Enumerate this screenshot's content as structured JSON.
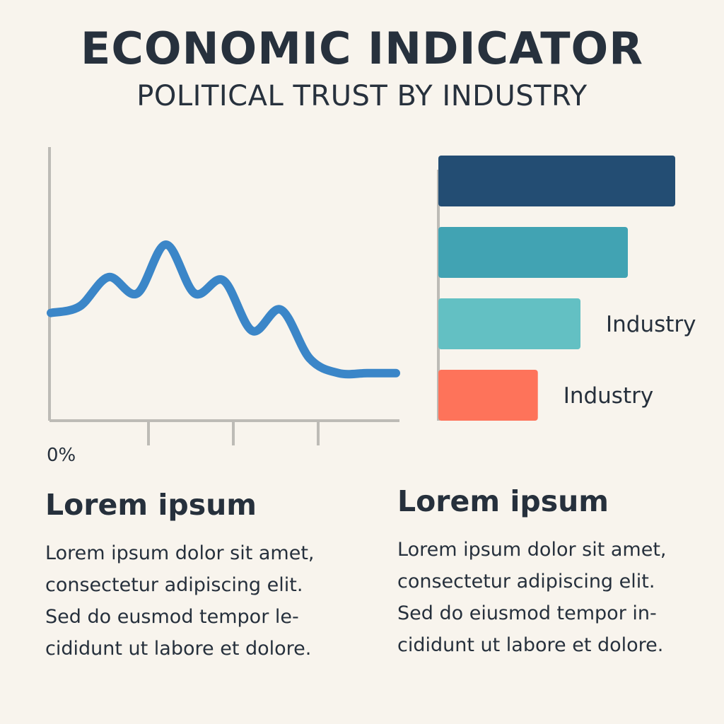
{
  "header": {
    "title": "ECONOMIC INDICATOR",
    "subtitle": "POLITICAL TRUST BY INDUSTRY"
  },
  "chart_data": [
    {
      "type": "line",
      "title": "",
      "y_tick_labels": [
        "0%"
      ],
      "x": [
        0,
        1,
        2,
        3,
        4,
        5,
        6,
        7,
        8,
        9,
        10,
        11,
        12
      ],
      "series": [
        {
          "values": [
            38,
            42,
            60,
            50,
            80,
            50,
            58,
            27,
            40,
            10,
            1,
            1,
            1
          ],
          "color": "#3b86c8"
        }
      ],
      "grid": false
    },
    {
      "type": "bar",
      "orientation": "horizontal",
      "categories": [
        "",
        "",
        "Industry",
        "Industry"
      ],
      "values": [
        100,
        80,
        60,
        42
      ],
      "colors": [
        "#234d73",
        "#41a3b3",
        "#63c0c3",
        "#fe735a"
      ],
      "grid": false
    }
  ],
  "sections": [
    {
      "heading": "Lorem ipsum",
      "lines": [
        "Lorem ipsum dolor sit amet,",
        "consectetur adipiscing elit.",
        "Sed do eusmod tempor le-",
        "cididunt ut labore et dolore."
      ]
    },
    {
      "heading": "Lorem ipsum",
      "lines": [
        "Lorem ipsum dolor sit amet,",
        "consectetur adipiscing elit.",
        "Sed do eiusmod tempor in-",
        "cididunt ut labore et dolore."
      ]
    }
  ],
  "colors": {
    "background": "#f8f4ed",
    "text": "#27313d",
    "axis": "#bdbbb6"
  }
}
